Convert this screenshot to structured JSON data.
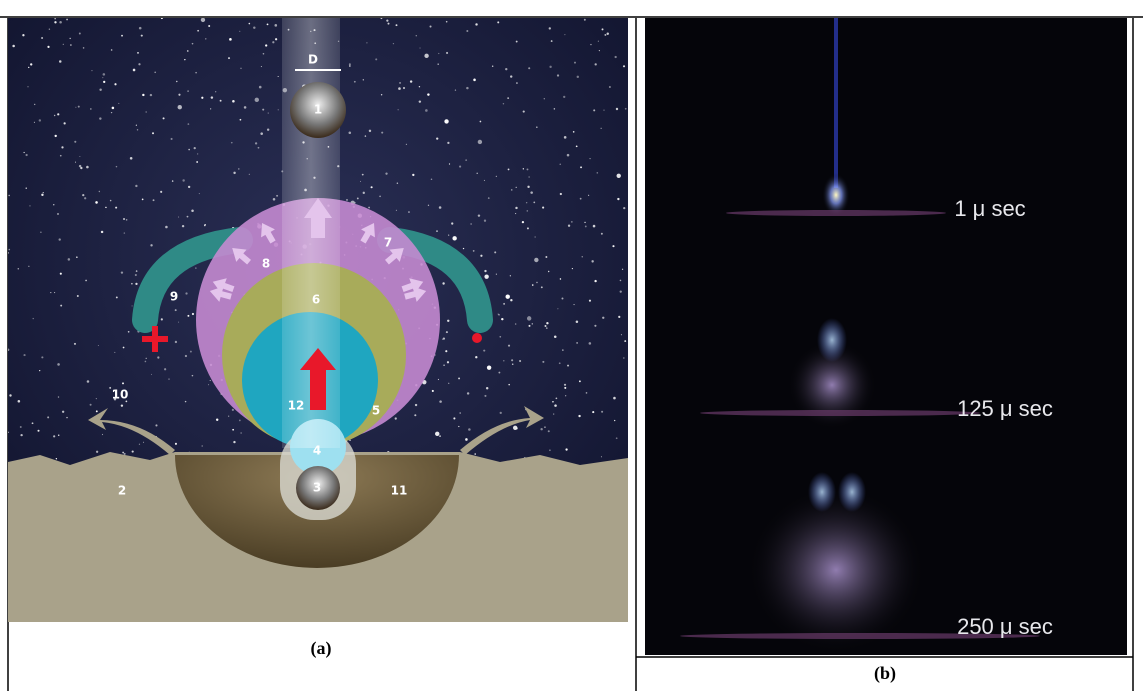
{
  "panel_a": {
    "labels": {
      "d": "D",
      "n1": "1",
      "n2": "2",
      "n3": "3",
      "n4": "4",
      "n5": "5",
      "n6": "6",
      "n7": "7",
      "n8": "8",
      "n9": "9",
      "n10": "10",
      "n11": "11",
      "n12": "12"
    },
    "caption": "(a)"
  },
  "panel_b": {
    "labels": [
      "1 μ sec",
      "125 μ sec",
      "250 μ sec"
    ],
    "caption": "(b)"
  }
}
